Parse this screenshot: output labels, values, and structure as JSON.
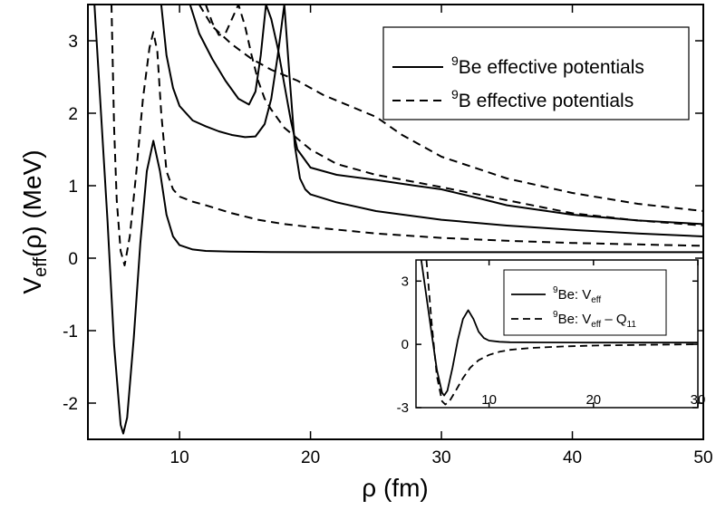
{
  "chart_data": [
    {
      "type": "line",
      "xlabel": {
        "base": "ρ",
        "rest": " (fm)"
      },
      "ylabel": {
        "base": "V",
        "sub": "eff",
        "rest": "(ρ) (MeV)"
      },
      "xlim": [
        3,
        50
      ],
      "ylim": [
        -2.5,
        3.5
      ],
      "xticks": [
        10,
        20,
        30,
        40,
        50
      ],
      "yticks": [
        -2,
        -1,
        0,
        1,
        2,
        3
      ],
      "legend": {
        "position": "top-right",
        "entries": [
          {
            "sup": "9",
            "text": "Be effective potentials",
            "style": "solid"
          },
          {
            "sup": "9",
            "text": "B effective potentials",
            "style": "dashed"
          }
        ]
      },
      "series": [
        {
          "style": "solid",
          "x": [
            3.5,
            4.5,
            5.0,
            5.5,
            5.7,
            6.0,
            6.5,
            7.0,
            7.5,
            8.0,
            8.5,
            9.0,
            9.5,
            10.0,
            11.0,
            12.0,
            14.0,
            17.0,
            20.0,
            25.0,
            30.0,
            40.0,
            50.0
          ],
          "y": [
            3.5,
            0.5,
            -1.2,
            -2.3,
            -2.42,
            -2.2,
            -1.1,
            0.2,
            1.2,
            1.62,
            1.2,
            0.6,
            0.3,
            0.18,
            0.12,
            0.1,
            0.09,
            0.085,
            0.083,
            0.082,
            0.082,
            0.082,
            0.082
          ]
        },
        {
          "style": "solid",
          "x": [
            8.6,
            9.0,
            9.5,
            10.0,
            11.0,
            12.0,
            13.0,
            14.0,
            15.0,
            15.8,
            16.5,
            17.0,
            17.5,
            18.0,
            18.4,
            18.8,
            19.2,
            19.6,
            20.0,
            22.0,
            25.0,
            30.0,
            35.0,
            40.0,
            45.0,
            50.0
          ],
          "y": [
            3.5,
            2.8,
            2.35,
            2.1,
            1.9,
            1.82,
            1.75,
            1.7,
            1.67,
            1.68,
            1.85,
            2.2,
            2.8,
            3.5,
            2.5,
            1.55,
            1.1,
            0.95,
            0.88,
            0.77,
            0.65,
            0.53,
            0.45,
            0.39,
            0.34,
            0.3
          ]
        },
        {
          "style": "solid",
          "x": [
            10.8,
            11.5,
            12.5,
            13.5,
            14.5,
            15.3,
            15.8,
            16.2,
            16.6,
            17.0,
            17.5,
            18.0,
            18.5,
            19.0,
            20.0,
            22.0,
            25.0,
            28.0,
            30.0,
            33.0,
            35.0,
            40.0,
            45.0,
            50.0
          ],
          "y": [
            3.5,
            3.1,
            2.75,
            2.45,
            2.2,
            2.12,
            2.3,
            2.8,
            3.5,
            3.3,
            2.9,
            2.4,
            1.9,
            1.5,
            1.25,
            1.15,
            1.08,
            1.0,
            0.95,
            0.82,
            0.73,
            0.6,
            0.52,
            0.47
          ]
        },
        {
          "style": "dashed",
          "x": [
            4.8,
            5.0,
            5.2,
            5.5,
            5.8,
            6.2,
            6.7,
            7.2,
            7.7,
            8.0,
            8.3,
            8.6,
            9.0,
            9.5,
            10.0,
            11.0,
            12.0,
            14.0,
            16.0,
            18.0,
            20.0,
            25.0,
            30.0,
            35.0,
            40.0,
            45.0,
            50.0
          ],
          "y": [
            3.5,
            1.8,
            0.8,
            0.1,
            -0.1,
            0.3,
            1.2,
            2.2,
            2.9,
            3.12,
            2.85,
            2.0,
            1.2,
            0.95,
            0.85,
            0.78,
            0.73,
            0.62,
            0.53,
            0.47,
            0.43,
            0.34,
            0.28,
            0.24,
            0.21,
            0.19,
            0.17
          ]
        },
        {
          "style": "dashed",
          "x": [
            12.0,
            12.5,
            13.0,
            13.5,
            14.0,
            14.5,
            15.0,
            15.5,
            16.0,
            16.5,
            17.0,
            18.0,
            19.0,
            20.0,
            22.0,
            25.0,
            28.0,
            30.0,
            35.0,
            40.0,
            45.0,
            50.0
          ],
          "y": [
            3.5,
            3.25,
            3.08,
            3.1,
            3.3,
            3.5,
            3.2,
            2.8,
            2.45,
            2.2,
            2.05,
            1.8,
            1.65,
            1.5,
            1.3,
            1.15,
            1.05,
            0.98,
            0.8,
            0.62,
            0.52,
            0.45
          ]
        },
        {
          "style": "dashed",
          "x": [
            11.5,
            12.5,
            14.0,
            15.5,
            17.0,
            19.0,
            21.0,
            23.0,
            25.0,
            27.0,
            30.0,
            35.0,
            40.0,
            45.0,
            50.0
          ],
          "y": [
            3.5,
            3.2,
            2.95,
            2.75,
            2.6,
            2.45,
            2.25,
            2.1,
            1.95,
            1.7,
            1.4,
            1.1,
            0.9,
            0.75,
            0.65
          ]
        }
      ]
    },
    {
      "type": "line",
      "inset": true,
      "xlim": [
        3,
        30
      ],
      "ylim": [
        -3,
        4
      ],
      "xticks": [
        10,
        20,
        30
      ],
      "yticks": [
        -3,
        0,
        3
      ],
      "legend": {
        "position": "top-right",
        "entries": [
          {
            "sup": "9",
            "text": "Be: V",
            "sub": "eff",
            "tail": "",
            "style": "solid"
          },
          {
            "sup": "9",
            "text": "Be: V",
            "sub": "eff",
            "tail": " – Q",
            "sub2": "11",
            "style": "dashed"
          }
        ]
      },
      "series": [
        {
          "style": "solid",
          "x": [
            3.5,
            4.5,
            5.0,
            5.5,
            5.7,
            6.0,
            6.5,
            7.0,
            7.5,
            8.0,
            8.5,
            9.0,
            9.5,
            10.0,
            11.0,
            12.0,
            15.0,
            20.0,
            25.0,
            30.0
          ],
          "y": [
            4,
            0.5,
            -1.2,
            -2.3,
            -2.42,
            -2.2,
            -1.1,
            0.2,
            1.2,
            1.62,
            1.2,
            0.6,
            0.3,
            0.18,
            0.12,
            0.1,
            0.09,
            0.085,
            0.082,
            0.082
          ]
        },
        {
          "style": "dashed",
          "x": [
            4.0,
            4.5,
            5.0,
            5.5,
            5.8,
            6.2,
            6.8,
            7.5,
            8.2,
            9.0,
            10.0,
            11.0,
            12.0,
            14.0,
            17.0,
            20.0,
            25.0,
            30.0
          ],
          "y": [
            4,
            1.0,
            -1.5,
            -2.7,
            -2.85,
            -2.7,
            -2.2,
            -1.6,
            -1.1,
            -0.75,
            -0.5,
            -0.35,
            -0.26,
            -0.17,
            -0.1,
            -0.06,
            -0.02,
            0.0
          ]
        }
      ]
    }
  ]
}
